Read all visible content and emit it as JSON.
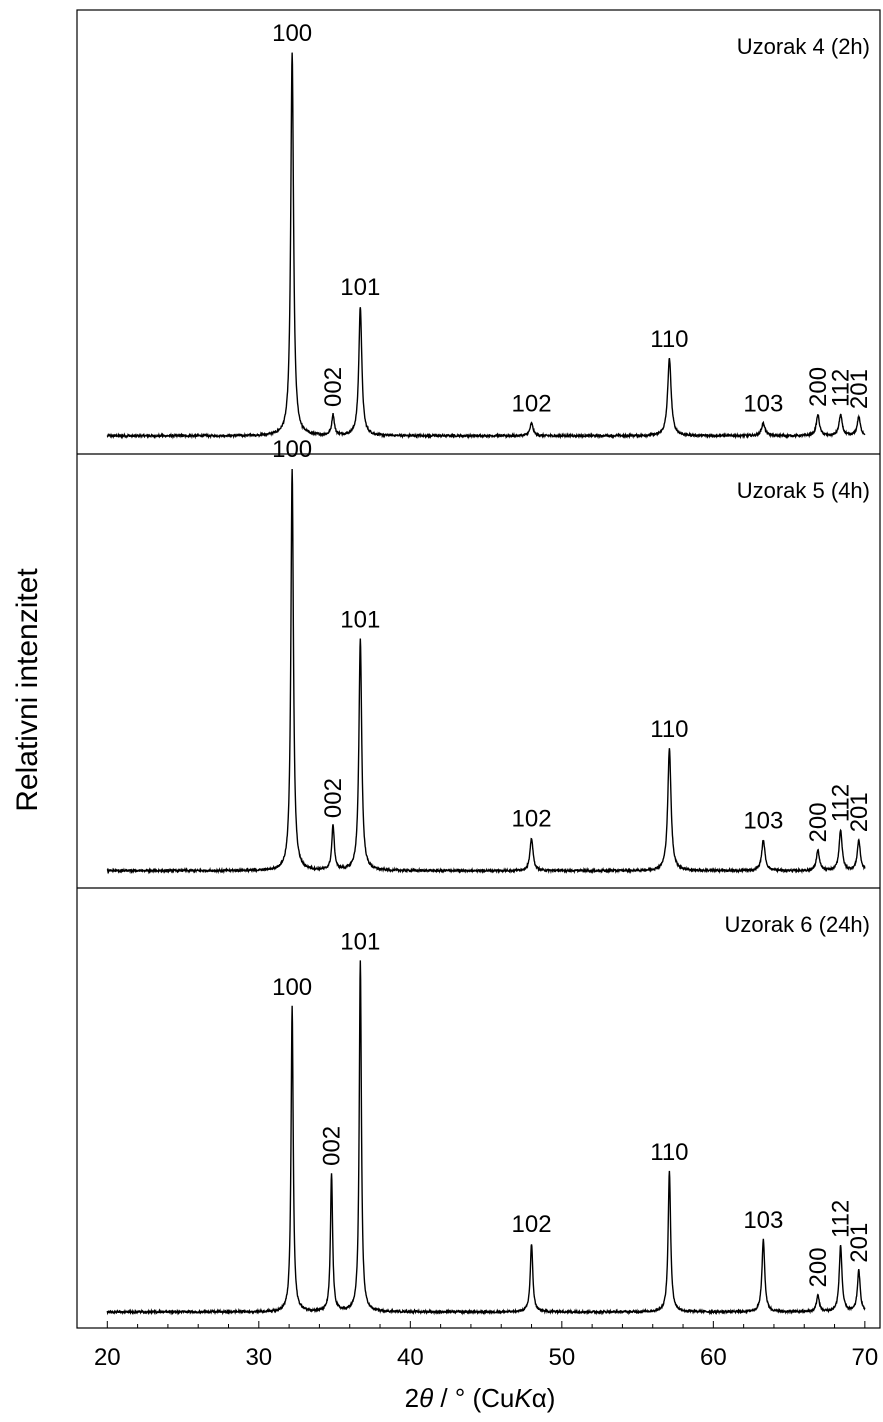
{
  "chart_data": {
    "type": "line",
    "ylabel": "Relativni intenzitet",
    "xlabel": {
      "prefix": "2",
      "theta": "θ",
      "mid": " / ° (Cu",
      "k": "K",
      "alpha": "α",
      "suffix": ")"
    },
    "xlim": [
      18,
      71
    ],
    "ylim": [
      0,
      100
    ],
    "x_ticks": [
      "20",
      "30",
      "40",
      "50",
      "60",
      "70"
    ],
    "x_tick_values": [
      20,
      30,
      40,
      50,
      60,
      70
    ],
    "grid": false,
    "legend": "none",
    "line_color": "#000000",
    "panels": [
      {
        "name": "Uzorak 4 (2h)",
        "background": 1.0,
        "peaks": [
          {
            "label": "100",
            "x": 32.2,
            "height": 92,
            "width": 0.22
          },
          {
            "label": "002",
            "x": 34.9,
            "height": 5,
            "width": 0.2
          },
          {
            "label": "101",
            "x": 36.7,
            "height": 31,
            "width": 0.24
          },
          {
            "label": "102",
            "x": 48.0,
            "height": 3,
            "width": 0.25
          },
          {
            "label": "110",
            "x": 57.1,
            "height": 18.5,
            "width": 0.28
          },
          {
            "label": "103",
            "x": 63.3,
            "height": 3,
            "width": 0.28
          },
          {
            "label": "200",
            "x": 66.9,
            "height": 5,
            "width": 0.25
          },
          {
            "label": "112",
            "x": 68.4,
            "height": 5,
            "width": 0.25
          },
          {
            "label": "201",
            "x": 69.6,
            "height": 4.5,
            "width": 0.25
          }
        ]
      },
      {
        "name": "Uzorak 5 (4h)",
        "background": 0.8,
        "peaks": [
          {
            "label": "100",
            "x": 32.2,
            "height": 99,
            "width": 0.2
          },
          {
            "label": "002",
            "x": 34.9,
            "height": 11,
            "width": 0.2
          },
          {
            "label": "101",
            "x": 36.7,
            "height": 57,
            "width": 0.22
          },
          {
            "label": "102",
            "x": 48.0,
            "height": 8,
            "width": 0.24
          },
          {
            "label": "110",
            "x": 57.1,
            "height": 30,
            "width": 0.26
          },
          {
            "label": "103",
            "x": 63.3,
            "height": 7.5,
            "width": 0.26
          },
          {
            "label": "200",
            "x": 66.9,
            "height": 5,
            "width": 0.24
          },
          {
            "label": "112",
            "x": 68.4,
            "height": 10,
            "width": 0.24
          },
          {
            "label": "201",
            "x": 69.6,
            "height": 7.5,
            "width": 0.24
          }
        ]
      },
      {
        "name": "Uzorak 6 (24h)",
        "background": 0.5,
        "peaks": [
          {
            "label": "100",
            "x": 32.2,
            "height": 74,
            "width": 0.17
          },
          {
            "label": "002",
            "x": 34.8,
            "height": 33.5,
            "width": 0.17
          },
          {
            "label": "101",
            "x": 36.7,
            "height": 85,
            "width": 0.17
          },
          {
            "label": "102",
            "x": 48.0,
            "height": 16.5,
            "width": 0.2
          },
          {
            "label": "110",
            "x": 57.1,
            "height": 34,
            "width": 0.2
          },
          {
            "label": "103",
            "x": 63.3,
            "height": 17.5,
            "width": 0.22
          },
          {
            "label": "200",
            "x": 66.9,
            "height": 4,
            "width": 0.22
          },
          {
            "label": "112",
            "x": 68.4,
            "height": 16,
            "width": 0.22
          },
          {
            "label": "201",
            "x": 69.6,
            "height": 10,
            "width": 0.22
          }
        ]
      }
    ]
  }
}
